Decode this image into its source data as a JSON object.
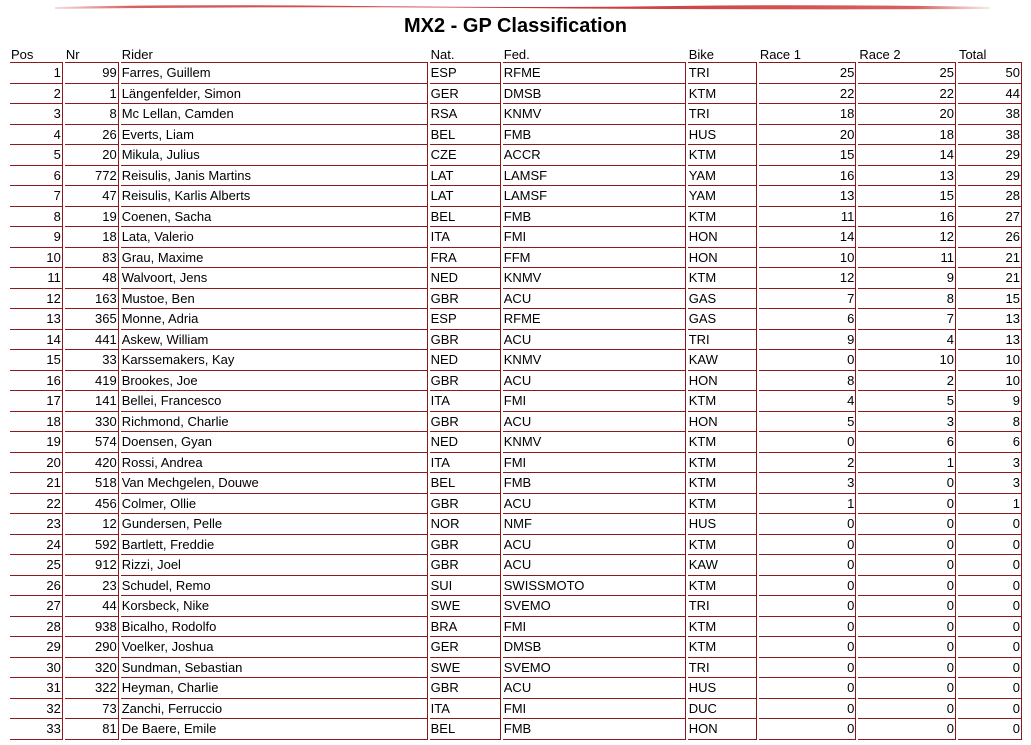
{
  "title": "MX2 - GP Classification",
  "columns": {
    "pos": "Pos",
    "nr": "Nr",
    "rider": "Rider",
    "nat": "Nat.",
    "fed": "Fed.",
    "bike": "Bike",
    "race1": "Race 1",
    "race2": "Race 2",
    "total": "Total"
  },
  "rows": [
    {
      "pos": "1",
      "nr": "99",
      "rider": "Farres, Guillem",
      "nat": "ESP",
      "fed": "RFME",
      "bike": "TRI",
      "race1": "25",
      "race2": "25",
      "total": "50"
    },
    {
      "pos": "2",
      "nr": "1",
      "rider": "Längenfelder, Simon",
      "nat": "GER",
      "fed": "DMSB",
      "bike": "KTM",
      "race1": "22",
      "race2": "22",
      "total": "44"
    },
    {
      "pos": "3",
      "nr": "8",
      "rider": "Mc Lellan, Camden",
      "nat": "RSA",
      "fed": "KNMV",
      "bike": "TRI",
      "race1": "18",
      "race2": "20",
      "total": "38"
    },
    {
      "pos": "4",
      "nr": "26",
      "rider": "Everts, Liam",
      "nat": "BEL",
      "fed": "FMB",
      "bike": "HUS",
      "race1": "20",
      "race2": "18",
      "total": "38"
    },
    {
      "pos": "5",
      "nr": "20",
      "rider": "Mikula, Julius",
      "nat": "CZE",
      "fed": "ACCR",
      "bike": "KTM",
      "race1": "15",
      "race2": "14",
      "total": "29"
    },
    {
      "pos": "6",
      "nr": "772",
      "rider": "Reisulis, Janis Martins",
      "nat": "LAT",
      "fed": "LAMSF",
      "bike": "YAM",
      "race1": "16",
      "race2": "13",
      "total": "29"
    },
    {
      "pos": "7",
      "nr": "47",
      "rider": "Reisulis, Karlis Alberts",
      "nat": "LAT",
      "fed": "LAMSF",
      "bike": "YAM",
      "race1": "13",
      "race2": "15",
      "total": "28"
    },
    {
      "pos": "8",
      "nr": "19",
      "rider": "Coenen, Sacha",
      "nat": "BEL",
      "fed": "FMB",
      "bike": "KTM",
      "race1": "11",
      "race2": "16",
      "total": "27"
    },
    {
      "pos": "9",
      "nr": "18",
      "rider": "Lata, Valerio",
      "nat": "ITA",
      "fed": "FMI",
      "bike": "HON",
      "race1": "14",
      "race2": "12",
      "total": "26"
    },
    {
      "pos": "10",
      "nr": "83",
      "rider": "Grau, Maxime",
      "nat": "FRA",
      "fed": "FFM",
      "bike": "HON",
      "race1": "10",
      "race2": "11",
      "total": "21"
    },
    {
      "pos": "11",
      "nr": "48",
      "rider": "Walvoort, Jens",
      "nat": "NED",
      "fed": "KNMV",
      "bike": "KTM",
      "race1": "12",
      "race2": "9",
      "total": "21"
    },
    {
      "pos": "12",
      "nr": "163",
      "rider": "Mustoe, Ben",
      "nat": "GBR",
      "fed": "ACU",
      "bike": "GAS",
      "race1": "7",
      "race2": "8",
      "total": "15"
    },
    {
      "pos": "13",
      "nr": "365",
      "rider": "Monne, Adria",
      "nat": "ESP",
      "fed": "RFME",
      "bike": "GAS",
      "race1": "6",
      "race2": "7",
      "total": "13"
    },
    {
      "pos": "14",
      "nr": "441",
      "rider": "Askew, William",
      "nat": "GBR",
      "fed": "ACU",
      "bike": "TRI",
      "race1": "9",
      "race2": "4",
      "total": "13"
    },
    {
      "pos": "15",
      "nr": "33",
      "rider": "Karssemakers, Kay",
      "nat": "NED",
      "fed": "KNMV",
      "bike": "KAW",
      "race1": "0",
      "race2": "10",
      "total": "10"
    },
    {
      "pos": "16",
      "nr": "419",
      "rider": "Brookes, Joe",
      "nat": "GBR",
      "fed": "ACU",
      "bike": "HON",
      "race1": "8",
      "race2": "2",
      "total": "10"
    },
    {
      "pos": "17",
      "nr": "141",
      "rider": "Bellei, Francesco",
      "nat": "ITA",
      "fed": "FMI",
      "bike": "KTM",
      "race1": "4",
      "race2": "5",
      "total": "9"
    },
    {
      "pos": "18",
      "nr": "330",
      "rider": "Richmond, Charlie",
      "nat": "GBR",
      "fed": "ACU",
      "bike": "HON",
      "race1": "5",
      "race2": "3",
      "total": "8"
    },
    {
      "pos": "19",
      "nr": "574",
      "rider": "Doensen, Gyan",
      "nat": "NED",
      "fed": "KNMV",
      "bike": "KTM",
      "race1": "0",
      "race2": "6",
      "total": "6"
    },
    {
      "pos": "20",
      "nr": "420",
      "rider": "Rossi, Andrea",
      "nat": "ITA",
      "fed": "FMI",
      "bike": "KTM",
      "race1": "2",
      "race2": "1",
      "total": "3"
    },
    {
      "pos": "21",
      "nr": "518",
      "rider": "Van Mechgelen, Douwe",
      "nat": "BEL",
      "fed": "FMB",
      "bike": "KTM",
      "race1": "3",
      "race2": "0",
      "total": "3"
    },
    {
      "pos": "22",
      "nr": "456",
      "rider": "Colmer, Ollie",
      "nat": "GBR",
      "fed": "ACU",
      "bike": "KTM",
      "race1": "1",
      "race2": "0",
      "total": "1"
    },
    {
      "pos": "23",
      "nr": "12",
      "rider": "Gundersen, Pelle",
      "nat": "NOR",
      "fed": "NMF",
      "bike": "HUS",
      "race1": "0",
      "race2": "0",
      "total": "0"
    },
    {
      "pos": "24",
      "nr": "592",
      "rider": "Bartlett, Freddie",
      "nat": "GBR",
      "fed": "ACU",
      "bike": "KTM",
      "race1": "0",
      "race2": "0",
      "total": "0"
    },
    {
      "pos": "25",
      "nr": "912",
      "rider": "Rizzi, Joel",
      "nat": "GBR",
      "fed": "ACU",
      "bike": "KAW",
      "race1": "0",
      "race2": "0",
      "total": "0"
    },
    {
      "pos": "26",
      "nr": "23",
      "rider": "Schudel, Remo",
      "nat": "SUI",
      "fed": "SWISSMOTO",
      "bike": "KTM",
      "race1": "0",
      "race2": "0",
      "total": "0"
    },
    {
      "pos": "27",
      "nr": "44",
      "rider": "Korsbeck, Nike",
      "nat": "SWE",
      "fed": "SVEMO",
      "bike": "TRI",
      "race1": "0",
      "race2": "0",
      "total": "0"
    },
    {
      "pos": "28",
      "nr": "938",
      "rider": "Bicalho, Rodolfo",
      "nat": "BRA",
      "fed": "FMI",
      "bike": "KTM",
      "race1": "0",
      "race2": "0",
      "total": "0"
    },
    {
      "pos": "29",
      "nr": "290",
      "rider": "Voelker, Joshua",
      "nat": "GER",
      "fed": "DMSB",
      "bike": "KTM",
      "race1": "0",
      "race2": "0",
      "total": "0"
    },
    {
      "pos": "30",
      "nr": "320",
      "rider": "Sundman, Sebastian",
      "nat": "SWE",
      "fed": "SVEMO",
      "bike": "TRI",
      "race1": "0",
      "race2": "0",
      "total": "0"
    },
    {
      "pos": "31",
      "nr": "322",
      "rider": "Heyman, Charlie",
      "nat": "GBR",
      "fed": "ACU",
      "bike": "HUS",
      "race1": "0",
      "race2": "0",
      "total": "0"
    },
    {
      "pos": "32",
      "nr": "73",
      "rider": "Zanchi, Ferruccio",
      "nat": "ITA",
      "fed": "FMI",
      "bike": "DUC",
      "race1": "0",
      "race2": "0",
      "total": "0"
    },
    {
      "pos": "33",
      "nr": "81",
      "rider": "De Baere, Emile",
      "nat": "BEL",
      "fed": "FMB",
      "bike": "HON",
      "race1": "0",
      "race2": "0",
      "total": "0"
    }
  ],
  "colors": {
    "accent": "#c41e1e",
    "rule": "#8b1a1a"
  }
}
